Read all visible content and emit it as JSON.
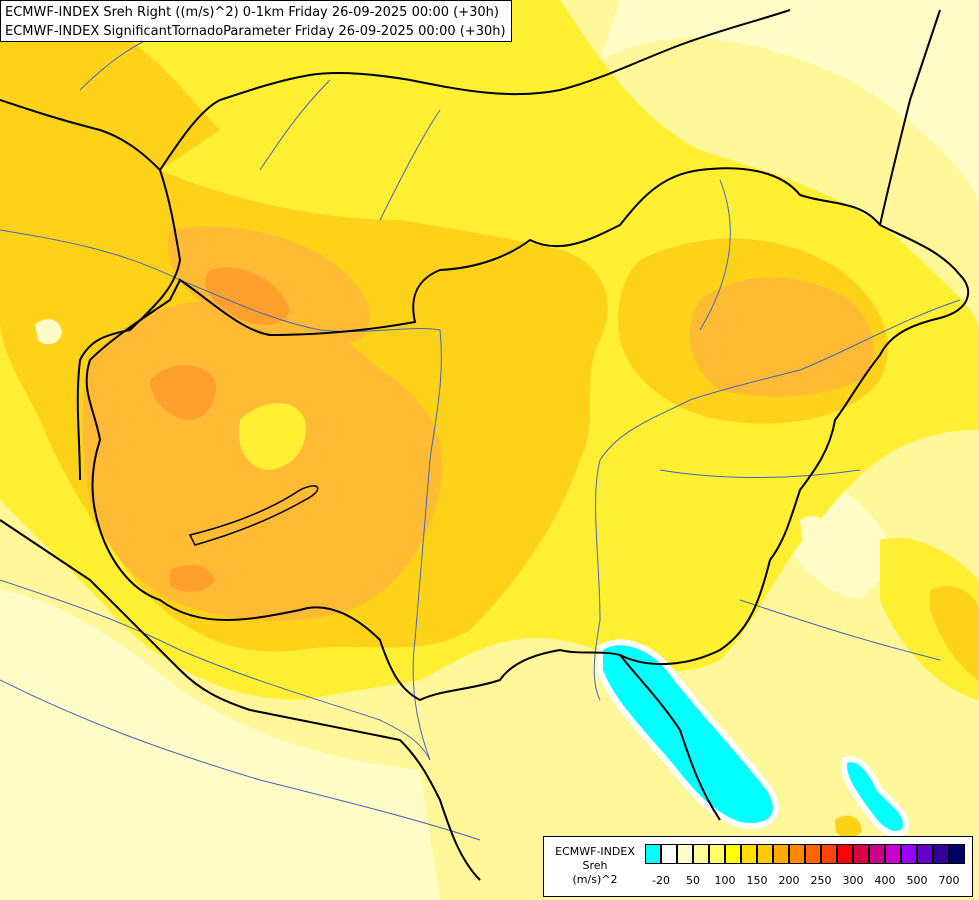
{
  "header": {
    "line1": "ECMWF-INDEX Sreh Right ((m/s)^2) 0-1km Friday 26-09-2025 00:00 (+30h)",
    "line2": "ECMWF-INDEX SignificantTornadoParameter Friday 26-09-2025 00:00 (+30h)"
  },
  "legend": {
    "title": "ECMWF-INDEX",
    "variable": "Sreh",
    "unit": "(m/s)^2",
    "colors": [
      "#00ffff",
      "#ffffff",
      "#ffffcc",
      "#ffff99",
      "#ffff66",
      "#ffff00",
      "#ffdd00",
      "#ffcc00",
      "#ffaa00",
      "#ff8800",
      "#ff6600",
      "#ff4400",
      "#ff0000",
      "#dd0044",
      "#cc0088",
      "#cc00cc",
      "#9900ff",
      "#6600cc",
      "#330099",
      "#000066"
    ],
    "tick_labels": [
      "-20",
      "50",
      "100",
      "150",
      "200",
      "250",
      "300",
      "400",
      "500",
      "700"
    ]
  },
  "map_colors": {
    "pale": "#fffcc8",
    "light_yellow": "#fff799",
    "yellow": "#ffef33",
    "gold": "#ffd21a",
    "orange_light": "#ffbb33",
    "orange": "#ff9f2e",
    "cyan": "#00ffff",
    "border": "#000000",
    "river": "#4466bb"
  }
}
